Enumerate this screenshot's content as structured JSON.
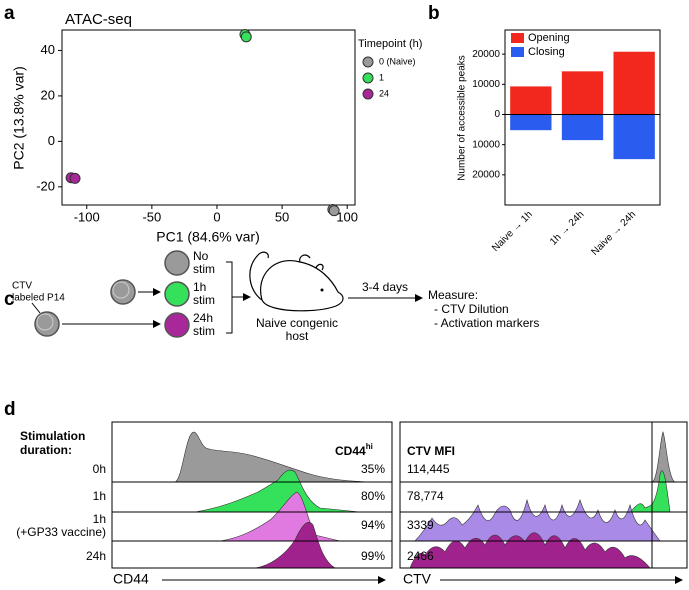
{
  "chart_data": [
    {
      "type": "scatter",
      "panel": "a",
      "title": "ATAC-seq",
      "x_label": "PC1 (84.6% var)",
      "y_label": "PC2 (13.8% var)",
      "xlim": [
        -119,
        106
      ],
      "ylim": [
        -28,
        49
      ],
      "xticks": [
        -100,
        -50,
        0,
        50,
        100
      ],
      "yticks": [
        -20,
        0,
        20,
        40
      ],
      "legend_title": "Timepoint (h)",
      "legend": "right",
      "series": [
        {
          "name": "0 (Naive)",
          "color": "#9a9a9a",
          "x": [
            89,
            90
          ],
          "y": [
            -30,
            -30.5
          ]
        },
        {
          "name": "1",
          "color": "#35e05a",
          "x": [
            21.5,
            22.5
          ],
          "y": [
            47,
            46
          ]
        },
        {
          "name": "24",
          "color": "#a8289a",
          "x": [
            -112,
            -109
          ],
          "y": [
            -16,
            -16.3
          ]
        }
      ]
    },
    {
      "type": "bar",
      "panel": "b",
      "y_label": "Number of accessible peaks",
      "categories": [
        "Naive → 1h",
        "1h → 24h",
        "Naive → 24h"
      ],
      "ylim": [
        -30000,
        28000
      ],
      "yticks": [
        {
          "value": -20000,
          "label": "20000"
        },
        {
          "value": -10000,
          "label": "10000"
        },
        0,
        10000,
        20000
      ],
      "legend": "upper left",
      "series": [
        {
          "name": "Opening",
          "color": "#f2281e",
          "values": [
            9300,
            14300,
            20800
          ]
        },
        {
          "name": "Closing",
          "color": "#2a5cf0",
          "values": [
            -5200,
            -8500,
            -14800
          ]
        }
      ]
    }
  ],
  "diagram": {
    "panel": "c",
    "source": [
      "CTV",
      "labeled P14"
    ],
    "conditions": [
      [
        "No",
        "stim"
      ],
      [
        "1h",
        "stim"
      ],
      [
        "24h",
        "stim"
      ]
    ],
    "host": [
      "Naive congenic",
      "host"
    ],
    "duration": "3-4 days",
    "measure": [
      "Measure:",
      "- CTV Dilution",
      "- Activation markers"
    ]
  },
  "histograms": {
    "panel": "d",
    "row_title": [
      "Stimulation",
      "duration:"
    ],
    "left_header": {
      "text": "CD44",
      "superscript": "hi"
    },
    "right_header": "CTV MFI",
    "rows": [
      {
        "label": [
          "0h"
        ],
        "cd44": "35%",
        "ctv_mfi": "114,445"
      },
      {
        "label": [
          "1h"
        ],
        "cd44": "80%",
        "ctv_mfi": "78,774"
      },
      {
        "label": [
          "1h",
          "(+GP33 vaccine)"
        ],
        "cd44": "94%",
        "ctv_mfi": "3339"
      },
      {
        "label": [
          "24h"
        ],
        "cd44": "99%",
        "ctv_mfi": "2466"
      }
    ],
    "x_labels": [
      "CD44",
      "CTV"
    ]
  }
}
